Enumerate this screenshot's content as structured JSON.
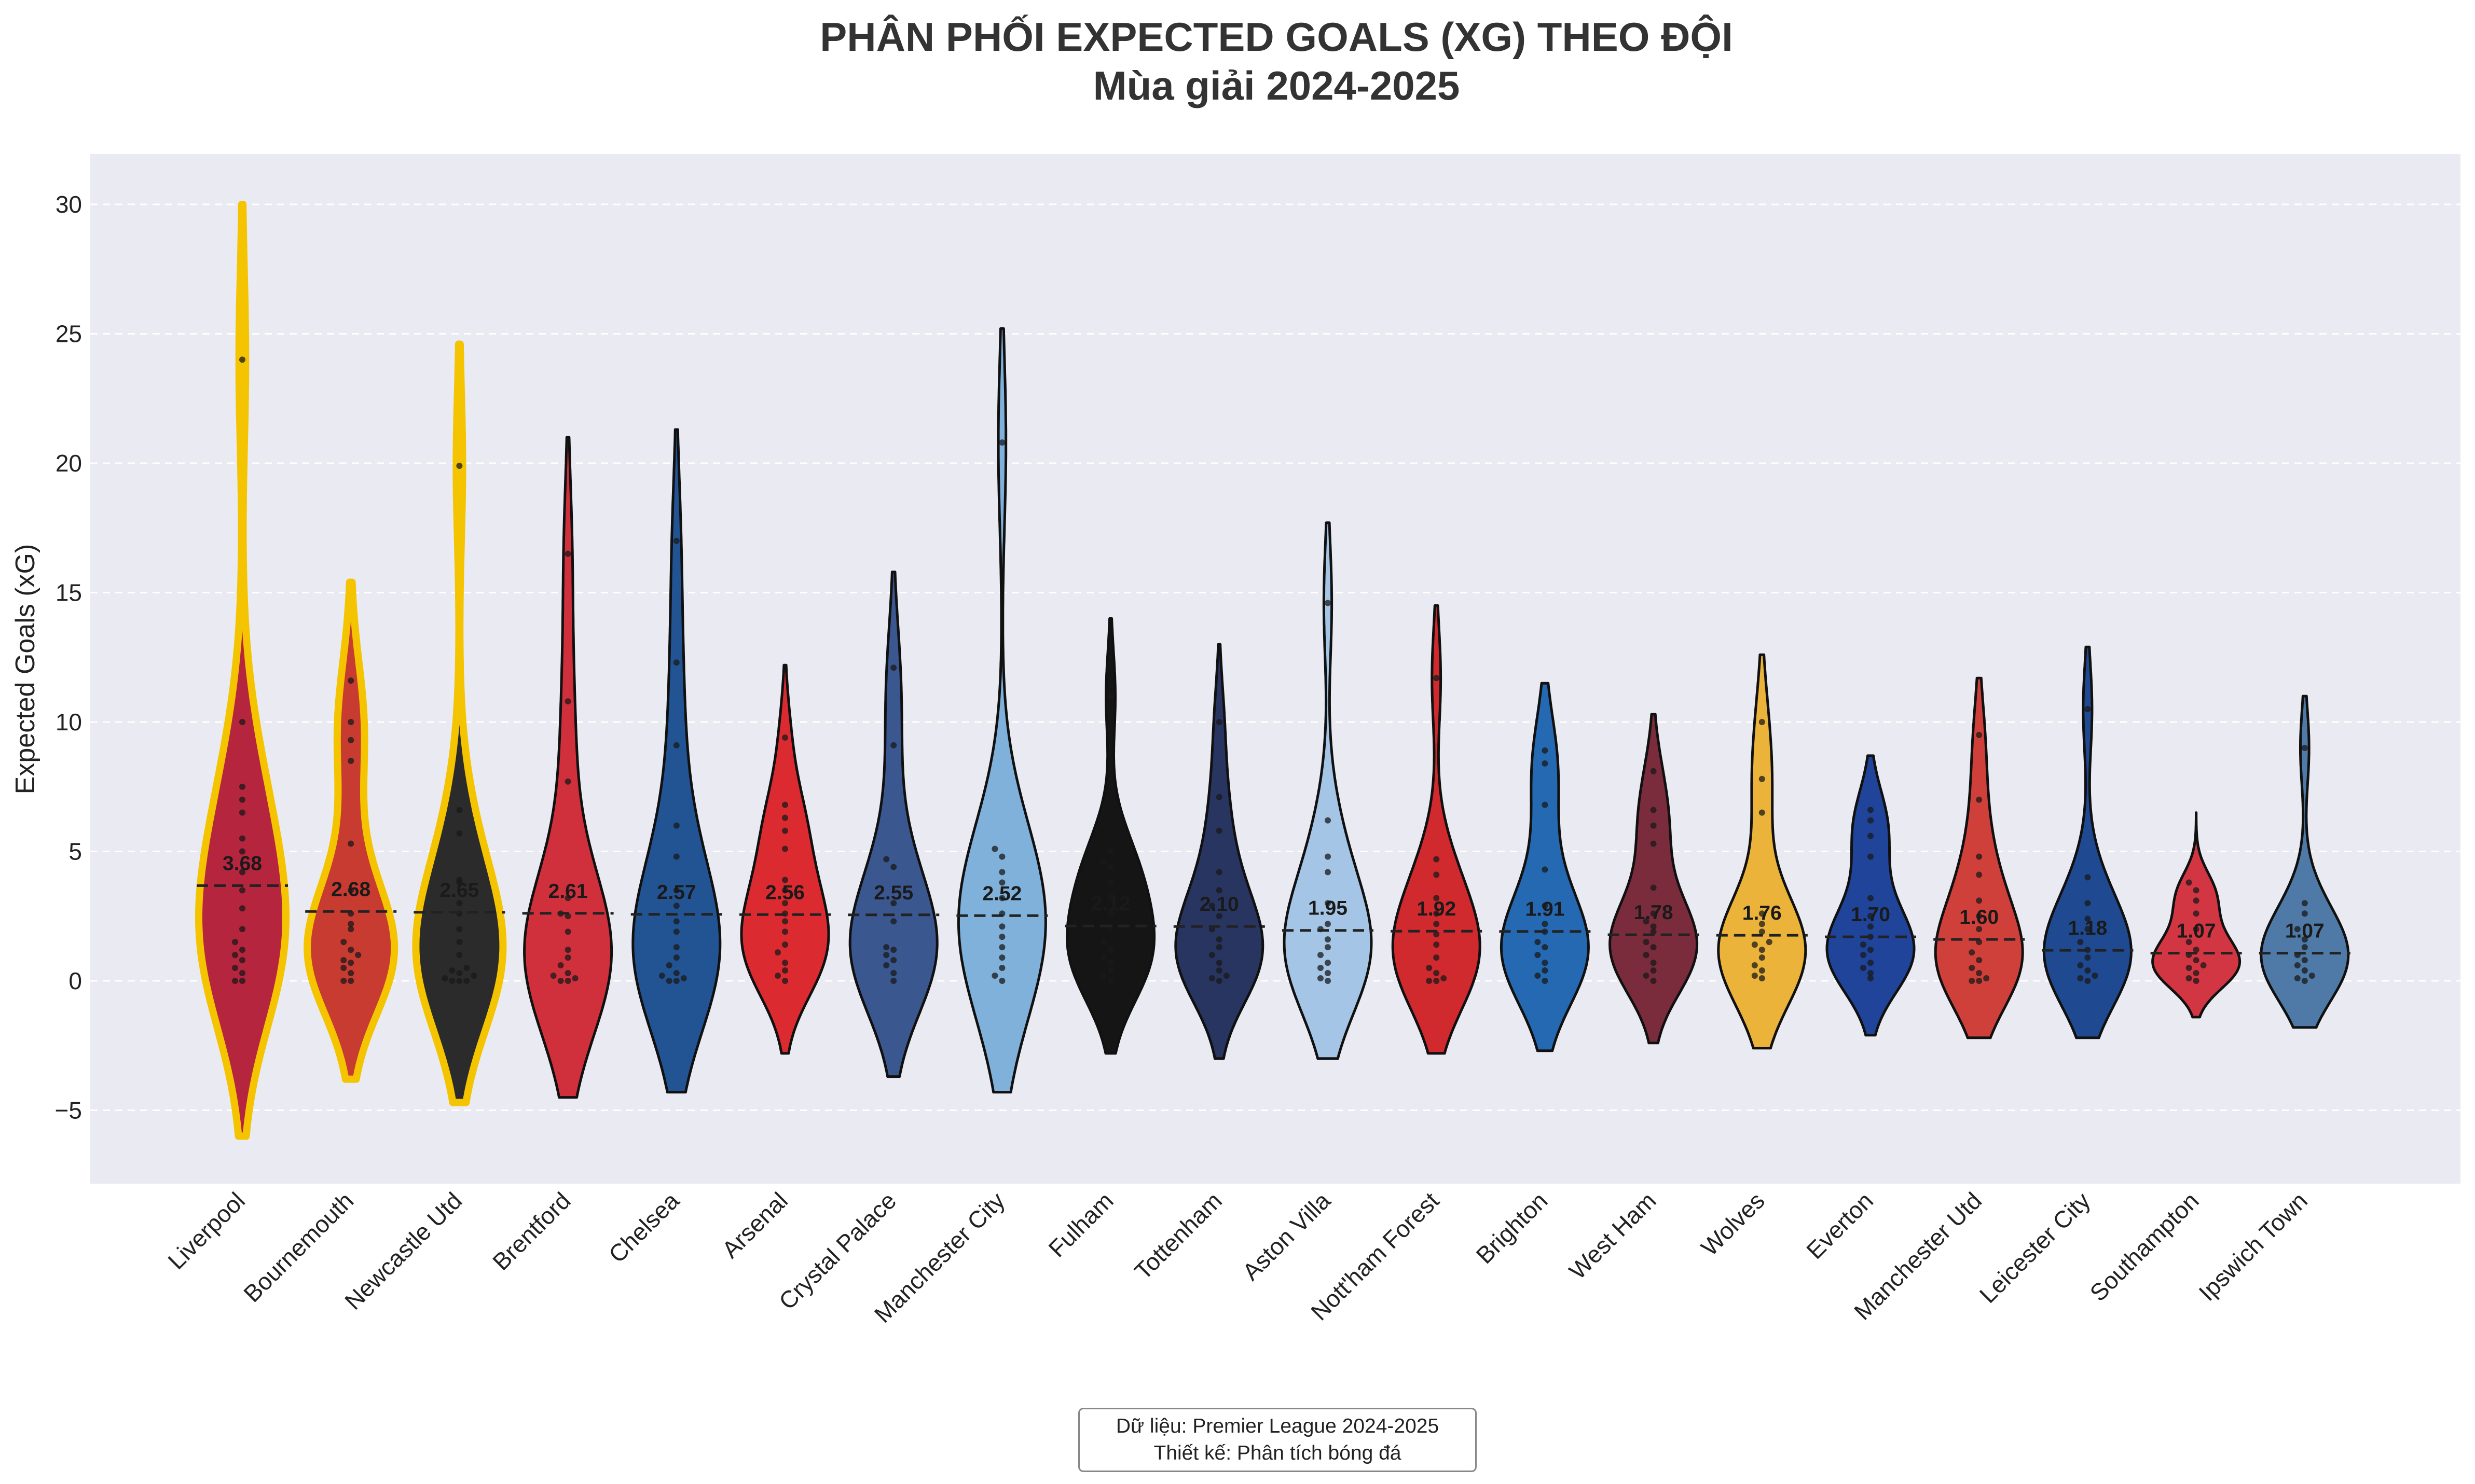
{
  "chart_data": {
    "type": "violin",
    "title": "PHÂN PHỐI EXPECTED GOALS (XG) THEO ĐỘI",
    "subtitle": "Mùa giải 2024-2025",
    "xlabel": "",
    "ylabel": "Expected Goals (xG)",
    "ylim": [
      -8,
      32
    ],
    "yticks": [
      -5,
      0,
      5,
      10,
      15,
      20,
      25,
      30
    ],
    "ytick_labels": [
      "−5",
      "0",
      "5",
      "10",
      "15",
      "20",
      "25",
      "30"
    ],
    "grid": true,
    "categories": [
      "Liverpool",
      "Bournemouth",
      "Newcastle Utd",
      "Brentford",
      "Chelsea",
      "Arsenal",
      "Crystal Palace",
      "Manchester City",
      "Fulham",
      "Tottenham",
      "Aston Villa",
      "Nott'ham Forest",
      "Brighton",
      "West Ham",
      "Wolves",
      "Everton",
      "Manchester Utd",
      "Leicester City",
      "Southampton",
      "Ipswich Town"
    ],
    "means": [
      3.68,
      2.68,
      2.65,
      2.61,
      2.57,
      2.56,
      2.55,
      2.52,
      2.12,
      2.1,
      1.95,
      1.92,
      1.91,
      1.78,
      1.76,
      1.7,
      1.6,
      1.18,
      1.07,
      1.07
    ],
    "mean_labels": [
      "3.68",
      "2.68",
      "2.65",
      "2.61",
      "2.57",
      "2.56",
      "2.55",
      "2.52",
      "2.12",
      "2.10",
      "1.95",
      "1.92",
      "1.91",
      "1.78",
      "1.76",
      "1.70",
      "1.60",
      "1.18",
      "1.07",
      "1.07"
    ],
    "violin_range": [
      [
        -6,
        30
      ],
      [
        -3.8,
        15.4
      ],
      [
        -4.7,
        24.6
      ],
      [
        -4.5,
        21
      ],
      [
        -4.3,
        21.3
      ],
      [
        -2.8,
        12.2
      ],
      [
        -3.7,
        15.8
      ],
      [
        -4.3,
        25.2
      ],
      [
        -2.8,
        14
      ],
      [
        -3,
        13
      ],
      [
        -3,
        17.7
      ],
      [
        -2.8,
        14.5
      ],
      [
        -2.7,
        11.5
      ],
      [
        -2.4,
        10.3
      ],
      [
        -2.6,
        12.6
      ],
      [
        -2.1,
        8.7
      ],
      [
        -2.2,
        11.7
      ],
      [
        -2.2,
        12.9
      ],
      [
        -1.4,
        6.5
      ],
      [
        -1.8,
        11
      ]
    ],
    "highlighted": [
      "Liverpool",
      "Bournemouth",
      "Newcastle Utd"
    ],
    "colors": [
      "#b5253e",
      "#c83b30",
      "#2b2b2b",
      "#d0303c",
      "#225494",
      "#dc2b30",
      "#3b5790",
      "#7fb1da",
      "#151515",
      "#283560",
      "#a4c5e5",
      "#d02a2f",
      "#2569b2",
      "#7b2c3c",
      "#ebb33a",
      "#1f449a",
      "#d0403a",
      "#1f4a92",
      "#d23643",
      "#4f7aa8"
    ],
    "points": [
      [
        0,
        0,
        0.3,
        0.5,
        0.8,
        1,
        1.2,
        1.5,
        2,
        2.8,
        3.5,
        4.2,
        5,
        5.5,
        6.5,
        7,
        7.5,
        10,
        24
      ],
      [
        0,
        0,
        0.3,
        0.5,
        0.7,
        0.8,
        1,
        1.2,
        1.5,
        2,
        2.2,
        2.6,
        3.5,
        5.3,
        8.5,
        9.3,
        10,
        11.6
      ],
      [
        0,
        0,
        0,
        0.1,
        0.2,
        0.3,
        0.4,
        0.5,
        1,
        1.5,
        2,
        2.6,
        3,
        3.8,
        3.9,
        5.7,
        6.6,
        19.9
      ],
      [
        0,
        0,
        0.1,
        0.2,
        0.3,
        0.6,
        0.9,
        1.2,
        1.9,
        2.5,
        2.6,
        3.2,
        7.7,
        10.8,
        16.5
      ],
      [
        0,
        0,
        0.1,
        0.2,
        0.3,
        0.6,
        0.9,
        1.3,
        1.9,
        2.3,
        2.9,
        3.5,
        4.8,
        6,
        9.1,
        12.3,
        17
      ],
      [
        0,
        0.2,
        0.4,
        0.7,
        1.1,
        1.4,
        1.9,
        2.3,
        2.6,
        3,
        3.5,
        3.9,
        5.1,
        5.8,
        6.3,
        6.8,
        9.4
      ],
      [
        0,
        0.3,
        0.6,
        0.8,
        1,
        1.2,
        1.3,
        2.3,
        3,
        4.4,
        4.7,
        9.1,
        12.1
      ],
      [
        0,
        0.2,
        0.5,
        0.9,
        1.3,
        1.7,
        2.1,
        2.6,
        3.2,
        3.8,
        4.2,
        4.8,
        5.1,
        20.8
      ],
      [
        0,
        0.2,
        0.4,
        0.7,
        0.9,
        1.2,
        1.5,
        2.1,
        2.6,
        3.3,
        3.8,
        4.4,
        4.6,
        5,
        11
      ],
      [
        0,
        0.1,
        0.2,
        0.4,
        0.7,
        1,
        1.3,
        1.6,
        2,
        2.5,
        2.9,
        3.5,
        4.2,
        5.8,
        7.1,
        10
      ],
      [
        0,
        0.1,
        0.3,
        0.5,
        0.7,
        1,
        1.3,
        1.6,
        2,
        2.2,
        3,
        4.2,
        4.8,
        6.2,
        14.6
      ],
      [
        0,
        0,
        0.1,
        0.3,
        0.5,
        0.9,
        1.4,
        1.8,
        2.2,
        2.6,
        3.2,
        4.1,
        4.7,
        11.7
      ],
      [
        0,
        0.2,
        0.4,
        0.7,
        1,
        1.3,
        1.5,
        1.9,
        2.2,
        2.9,
        4.3,
        6.8,
        8.4,
        8.9
      ],
      [
        0,
        0.2,
        0.4,
        0.7,
        1,
        1.3,
        1.5,
        1.9,
        2.1,
        2.3,
        2.6,
        3.6,
        5.3,
        6,
        6.6,
        8.1
      ],
      [
        0.1,
        0.2,
        0.4,
        0.6,
        0.9,
        1.2,
        1.4,
        1.5,
        1.9,
        2.2,
        2.6,
        10,
        7.8,
        6.5
      ],
      [
        0.1,
        0.3,
        0.5,
        0.7,
        1,
        1.2,
        1.4,
        1.7,
        2.1,
        2.5,
        3.2,
        4.8,
        5.6,
        6.2,
        6.6
      ],
      [
        0,
        0,
        0.1,
        0.3,
        0.5,
        0.8,
        1.1,
        1.5,
        2,
        2.5,
        3.1,
        4.1,
        4.8,
        7,
        9.5
      ],
      [
        0,
        0.1,
        0.2,
        0.4,
        0.6,
        0.9,
        1.2,
        1.5,
        2,
        2.4,
        3,
        4,
        10.5
      ],
      [
        0,
        0.1,
        0.3,
        0.5,
        0.6,
        0.8,
        1,
        1.2,
        1.5,
        2,
        2.6,
        3.1,
        3.5,
        3.8
      ],
      [
        0,
        0.1,
        0.2,
        0.4,
        0.6,
        0.8,
        1,
        1.3,
        1.6,
        2,
        2.6,
        3,
        9
      ]
    ]
  },
  "footer": {
    "line1": "Dữ liệu: Premier League 2024-2025",
    "line2": "Thiết kế: Phân tích bóng đá"
  }
}
